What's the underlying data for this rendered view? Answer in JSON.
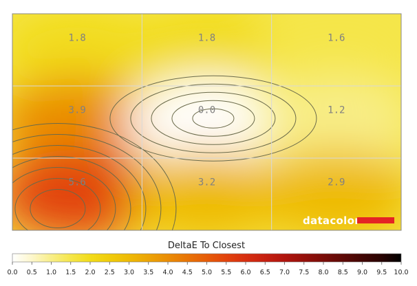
{
  "chart_data": {
    "type": "heatmap",
    "title": "DeltaE To Closest",
    "grid": true,
    "rows": 3,
    "cols": 3,
    "values": [
      [
        1.8,
        1.8,
        1.6
      ],
      [
        3.9,
        0.0,
        1.2
      ],
      [
        5.6,
        3.2,
        2.9
      ]
    ],
    "colorbar": {
      "min": 0.0,
      "max": 10.0,
      "ticks": [
        "0.0",
        "0.5",
        "1.0",
        "1.5",
        "2.0",
        "2.5",
        "3.0",
        "3.5",
        "4.0",
        "4.5",
        "5.0",
        "5.5",
        "6.0",
        "6.5",
        "7.0",
        "7.5",
        "8.0",
        "8.5",
        "9.0",
        "9.5",
        "10.0"
      ],
      "colors": [
        "#ffffff",
        "#fdf7cc",
        "#f8ee88",
        "#f5e64a",
        "#f2dc1a",
        "#f0cc0a",
        "#eeba06",
        "#eca406",
        "#ea8d06",
        "#e87406",
        "#e65c08",
        "#e2430c",
        "#d72f10",
        "#c62010",
        "#b0140d",
        "#96100a",
        "#7a0c08",
        "#5e0906",
        "#420604",
        "#280302",
        "#000000"
      ]
    },
    "watermark": "datacolor",
    "colors": {
      "grid": "#d8d8d8",
      "contour": "#6a6a4a",
      "label": "#808080",
      "logo_bar": "#e42424"
    }
  }
}
